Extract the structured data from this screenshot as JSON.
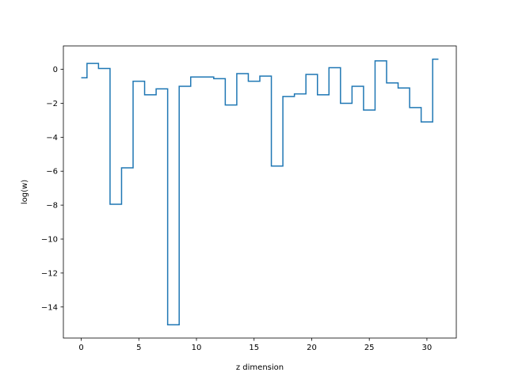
{
  "chart_data": {
    "type": "line",
    "drawstyle": "steps-mid",
    "title": "",
    "xlabel": "z dimension",
    "ylabel": "log(w)",
    "x": [
      0,
      1,
      2,
      3,
      4,
      5,
      6,
      7,
      8,
      9,
      10,
      11,
      12,
      13,
      14,
      15,
      16,
      17,
      18,
      19,
      20,
      21,
      22,
      23,
      24,
      25,
      26,
      27,
      28,
      29,
      30,
      31
    ],
    "series": [
      {
        "color": "#1f77b4",
        "values": [
          -0.5,
          0.35,
          0.05,
          -7.95,
          -5.8,
          -0.7,
          -1.5,
          -1.15,
          -15.05,
          -1.0,
          -0.45,
          -0.45,
          -0.55,
          -2.1,
          -0.25,
          -0.7,
          -0.4,
          -5.7,
          -1.6,
          -1.45,
          -0.3,
          -1.5,
          0.1,
          -2.0,
          -1.0,
          -2.4,
          0.5,
          -0.8,
          -1.1,
          -2.25,
          -3.1,
          0.6
        ]
      }
    ],
    "xlim": [
      -1.55,
      32.55
    ],
    "ylim": [
      -15.83,
      1.38
    ],
    "xticks": [
      0,
      5,
      10,
      15,
      20,
      25,
      30
    ],
    "xtick_labels": [
      "0",
      "5",
      "10",
      "15",
      "20",
      "25",
      "30"
    ],
    "yticks": [
      0,
      -2,
      -4,
      -6,
      -8,
      -10,
      -12,
      -14
    ],
    "ytick_labels": [
      "0",
      "−2",
      "−4",
      "−6",
      "−8",
      "−10",
      "−12",
      "−14"
    ],
    "grid": false,
    "legend": false
  }
}
